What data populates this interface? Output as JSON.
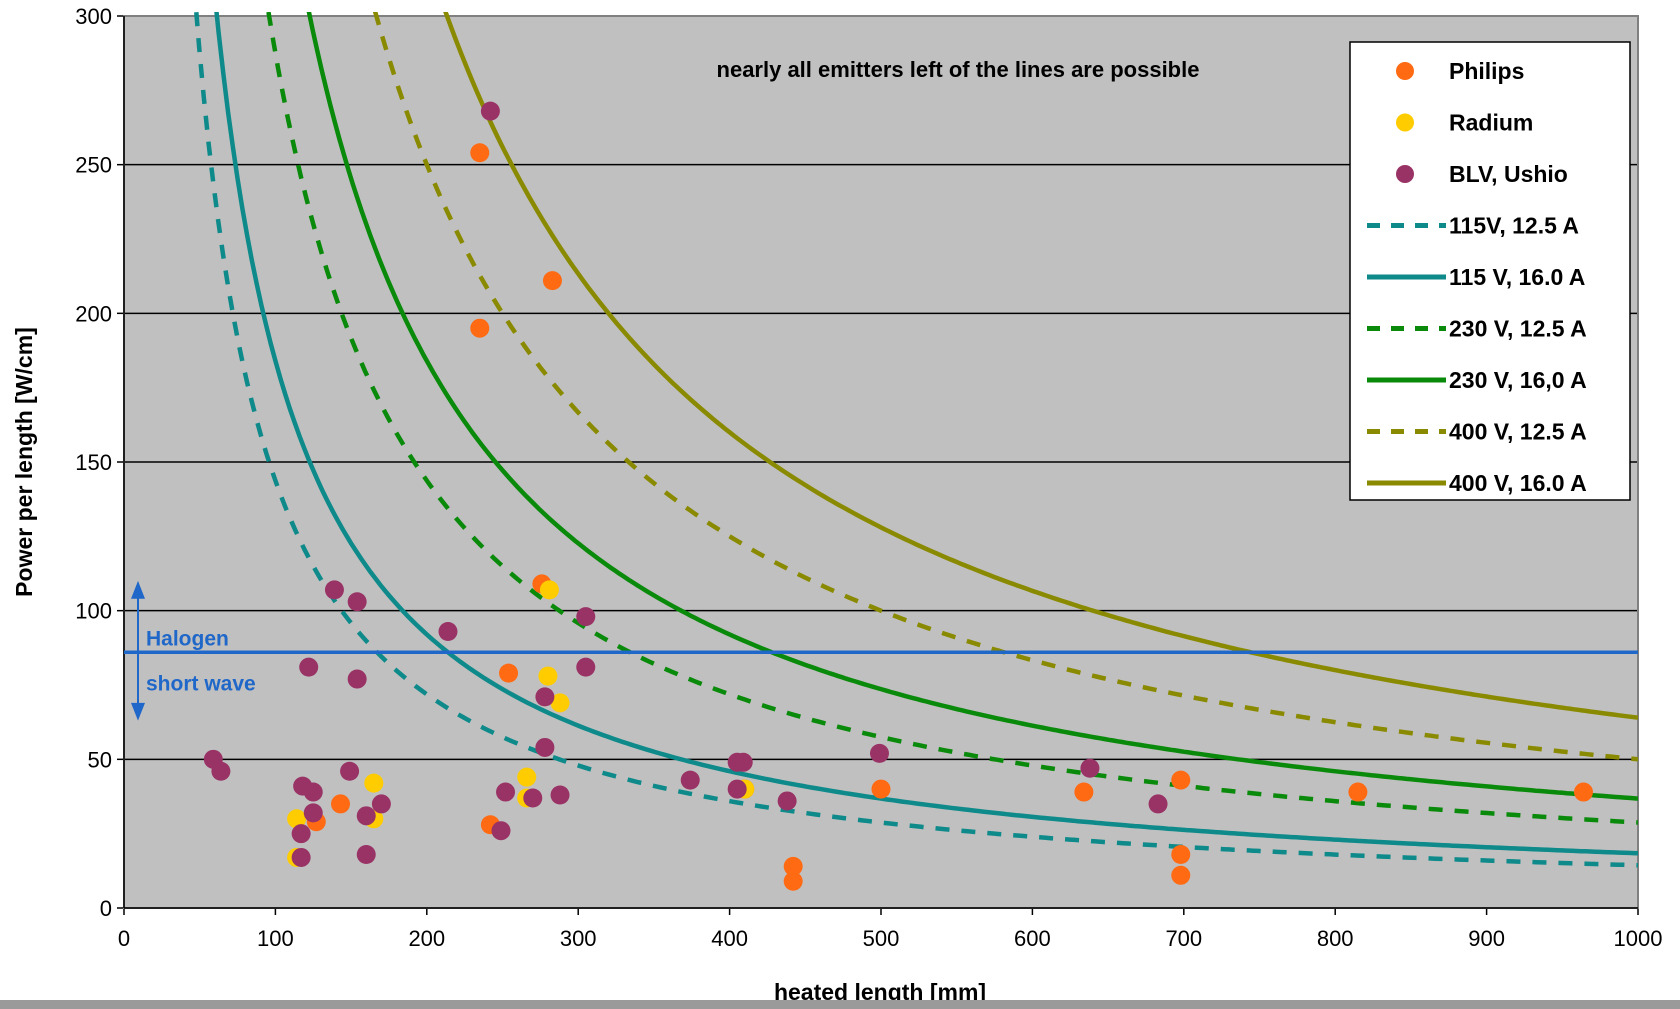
{
  "chart_data": {
    "type": "scatter",
    "title": "",
    "xlabel": "heated length [mm]",
    "ylabel": "Power per length [W/cm]",
    "xlim": [
      0,
      1000
    ],
    "ylim": [
      0,
      300
    ],
    "xticks": [
      "0",
      "100",
      "200",
      "300",
      "400",
      "500",
      "600",
      "700",
      "800",
      "900",
      "1000"
    ],
    "yticks": [
      "0",
      "50",
      "100",
      "150",
      "200",
      "250",
      "300"
    ],
    "grid": "horizontal",
    "legend_position": "top-right",
    "annotation": "nearly all emitters left of the lines are possible",
    "halogen_line": {
      "y": 86,
      "label_above": "Halogen",
      "label_below": "short wave",
      "color": "#1f67c8"
    },
    "colors": {
      "plot_bg": "#c0c0c0",
      "philips": "#ff6a13",
      "radium": "#ffcc00",
      "blv": "#993366",
      "v115": "#0e8a8a",
      "v230": "#0a8a0a",
      "v400": "#8a8a00"
    },
    "scatter_series": [
      {
        "name": "Philips",
        "color": "#ff6a13",
        "points": [
          [
            235,
            254
          ],
          [
            235,
            195
          ],
          [
            283,
            211
          ],
          [
            276,
            109
          ],
          [
            254,
            79
          ],
          [
            143,
            35
          ],
          [
            127,
            29
          ],
          [
            242,
            28
          ],
          [
            442,
            14
          ],
          [
            442,
            9
          ],
          [
            500,
            40
          ],
          [
            634,
            39
          ],
          [
            698,
            43
          ],
          [
            698,
            18
          ],
          [
            698,
            11
          ],
          [
            815,
            39
          ],
          [
            964,
            39
          ],
          [
            410,
            40
          ]
        ]
      },
      {
        "name": "Radium",
        "color": "#ffcc00",
        "points": [
          [
            114,
            30
          ],
          [
            114,
            17
          ],
          [
            165,
            42
          ],
          [
            165,
            30
          ],
          [
            266,
            44
          ],
          [
            266,
            37
          ],
          [
            281,
            107
          ],
          [
            280,
            78
          ],
          [
            288,
            69
          ],
          [
            410,
            40
          ]
        ]
      },
      {
        "name": "BLV, Ushio",
        "color": "#993366",
        "points": [
          [
            242,
            268
          ],
          [
            139,
            107
          ],
          [
            154,
            103
          ],
          [
            214,
            93
          ],
          [
            305,
            98
          ],
          [
            305,
            81
          ],
          [
            122,
            81
          ],
          [
            154,
            77
          ],
          [
            278,
            71
          ],
          [
            278,
            54
          ],
          [
            59,
            50
          ],
          [
            64,
            46
          ],
          [
            149,
            46
          ],
          [
            118,
            41
          ],
          [
            125,
            39
          ],
          [
            125,
            32
          ],
          [
            117,
            25
          ],
          [
            117,
            17
          ],
          [
            160,
            31
          ],
          [
            160,
            18
          ],
          [
            170,
            35
          ],
          [
            252,
            39
          ],
          [
            249,
            26
          ],
          [
            270,
            37
          ],
          [
            288,
            38
          ],
          [
            374,
            43
          ],
          [
            405,
            49
          ],
          [
            409,
            49
          ],
          [
            405,
            40
          ],
          [
            438,
            36
          ],
          [
            499,
            52
          ],
          [
            638,
            47
          ],
          [
            683,
            35
          ]
        ]
      }
    ],
    "line_series": [
      {
        "name": "115V, 12.5 A",
        "color": "#0e8a8a",
        "dash": true,
        "k": 14375
      },
      {
        "name": "115 V, 16.0 A",
        "color": "#0e8a8a",
        "dash": false,
        "k": 18400
      },
      {
        "name": "230 V, 12.5 A",
        "color": "#0a8a0a",
        "dash": true,
        "k": 28750
      },
      {
        "name": "230 V, 16,0 A",
        "color": "#0a8a0a",
        "dash": false,
        "k": 36800
      },
      {
        "name": "400 V, 12.5 A",
        "color": "#8a8a00",
        "dash": true,
        "k": 50000
      },
      {
        "name": "400 V, 16.0 A",
        "color": "#8a8a00",
        "dash": false,
        "k": 64000
      }
    ],
    "legend": [
      "Philips",
      "Radium",
      "BLV, Ushio",
      "115V, 12.5 A",
      "115 V, 16.0 A",
      "230 V, 12.5 A",
      "230 V, 16,0 A",
      "400 V, 12.5 A",
      "400 V, 16.0 A"
    ]
  }
}
